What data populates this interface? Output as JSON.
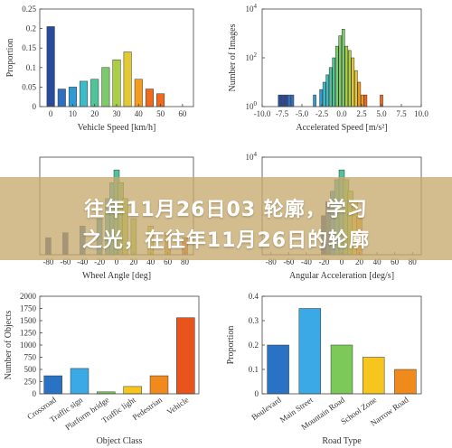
{
  "banner": {
    "line1": "往年11月26日03 轮廓，学习",
    "line2": "之光，在往年11月26日的轮廓"
  },
  "colors": {
    "palette_speed": [
      "#2a4b9b",
      "#2f6fbf",
      "#2f9bd6",
      "#3cbcc9",
      "#4fc49a",
      "#7ccb6b",
      "#a9cf45",
      "#e4c933",
      "#f39c1f",
      "#f06a1c"
    ],
    "palette_categorical": [
      "#2a72c4",
      "#3aa9e6",
      "#7cc95a",
      "#f6c51e",
      "#f08a1c",
      "#e8541c"
    ]
  },
  "chart_data": [
    {
      "id": "vehicle-speed",
      "type": "bar",
      "xlabel": "Vehicle Speed [km/h]",
      "ylabel": "Proportion",
      "y_scale": "linear",
      "xlim": [
        -5,
        65
      ],
      "ylim": [
        0,
        0.25
      ],
      "xticks": [
        0,
        10,
        20,
        30,
        40,
        50,
        60
      ],
      "yticks": [
        0,
        0.05,
        0.1,
        0.15,
        0.2,
        0.25
      ],
      "ytick_labels": [
        "0",
        "0.05",
        "0.1",
        "0.15",
        "0.2",
        "0.25"
      ],
      "bar_width": 3.5,
      "grid": false,
      "x": [
        0,
        5,
        10,
        15,
        20,
        25,
        30,
        35,
        40,
        45,
        50
      ],
      "values": [
        0.205,
        0.045,
        0.05,
        0.065,
        0.07,
        0.1,
        0.12,
        0.14,
        0.07,
        0.045,
        0.033
      ]
    },
    {
      "id": "accelerated-speed",
      "type": "bar",
      "xlabel": "Accelerated Speed [m/s²]",
      "ylabel": "Number of Images",
      "y_scale": "log",
      "xlim": [
        -10,
        10
      ],
      "ylim": [
        1,
        10000
      ],
      "xticks": [
        -10,
        -7.5,
        -5,
        -2.5,
        0,
        2.5,
        5,
        7.5,
        10
      ],
      "xtick_labels": [
        "-10.0",
        "-7.5",
        "-5.0",
        "-2.5",
        "0.0",
        "2.5",
        "5.0",
        "7.5",
        "10.0"
      ],
      "yticks": [
        1,
        100,
        10000
      ],
      "ytick_labels": [
        "10⁰",
        "10²",
        "10⁴"
      ],
      "bar_width": 0.35,
      "grid": false,
      "x": [
        -7.8,
        -7.4,
        -7.0,
        -6.6,
        -6.2,
        -3.4,
        -2.6,
        -2.2,
        -1.8,
        -1.4,
        -1.0,
        -0.6,
        -0.2,
        0.2,
        0.6,
        1.0,
        1.4,
        1.8,
        2.2,
        2.6,
        3.0,
        5.0
      ],
      "values": [
        3,
        3,
        3,
        3,
        3,
        3,
        5,
        10,
        20,
        40,
        100,
        300,
        800,
        1500,
        300,
        200,
        100,
        30,
        10,
        3,
        3,
        3
      ]
    },
    {
      "id": "wheel-angle",
      "type": "bar",
      "xlabel": "Wheel Angle [deg]",
      "ylabel": "",
      "y_scale": "log",
      "xlim": [
        -90,
        90
      ],
      "ylim": [
        1,
        10000
      ],
      "xticks": [
        -80,
        -60,
        -40,
        -20,
        0,
        20,
        40,
        60,
        80
      ],
      "grid": false,
      "visible_note": "panel largely covered by banner; ticks from -80 to 80 visible",
      "x": [
        -80,
        -60,
        -40,
        -20,
        -10,
        -5,
        0,
        5,
        10,
        20,
        40,
        60,
        80
      ],
      "values": [
        5,
        8,
        15,
        30,
        200,
        900,
        3000,
        900,
        200,
        30,
        15,
        8,
        5
      ]
    },
    {
      "id": "angular-acceleration",
      "type": "bar",
      "xlabel": "Angular Acceleration [deg/s]",
      "ylabel": "",
      "y_scale": "log",
      "xlim": [
        -90,
        90
      ],
      "ylim": [
        1,
        10000
      ],
      "xticks": [
        -80,
        -60,
        -40,
        -20,
        0,
        20,
        40,
        60,
        80
      ],
      "yticks": [
        10000
      ],
      "ytick_labels": [
        "10⁴"
      ],
      "grid": false,
      "x": [
        -20,
        -15,
        -10,
        -5,
        0,
        5,
        10,
        15,
        20
      ],
      "values": [
        40,
        150,
        400,
        1200,
        3000,
        1200,
        400,
        150,
        40
      ]
    },
    {
      "id": "object-class",
      "type": "bar",
      "xlabel": "Object Class",
      "ylabel": "Number of Objects",
      "y_scale": "linear",
      "ylim": [
        0,
        2000
      ],
      "yticks": [
        0,
        250,
        500,
        750,
        1000,
        1250,
        1500,
        1750,
        2000
      ],
      "grid": false,
      "categories": [
        "Crossroad",
        "Traffic sign",
        "Platform bridge",
        "Traffic light",
        "Pedestrian",
        "Vehicle"
      ],
      "values": [
        370,
        520,
        40,
        150,
        370,
        1560
      ]
    },
    {
      "id": "road-type",
      "type": "bar",
      "xlabel": "Road Type",
      "ylabel": "Proportion",
      "y_scale": "linear",
      "ylim": [
        0,
        0.4
      ],
      "yticks": [
        0,
        0.1,
        0.2,
        0.3,
        0.4
      ],
      "ytick_labels": [
        "0",
        "0.1",
        "0.2",
        "0.3",
        "0.4"
      ],
      "grid": false,
      "categories": [
        "Boulevard",
        "Main Street",
        "Mountain Road",
        "School Zone",
        "Narrow Road"
      ],
      "values": [
        0.2,
        0.35,
        0.2,
        0.15,
        0.1
      ]
    }
  ]
}
